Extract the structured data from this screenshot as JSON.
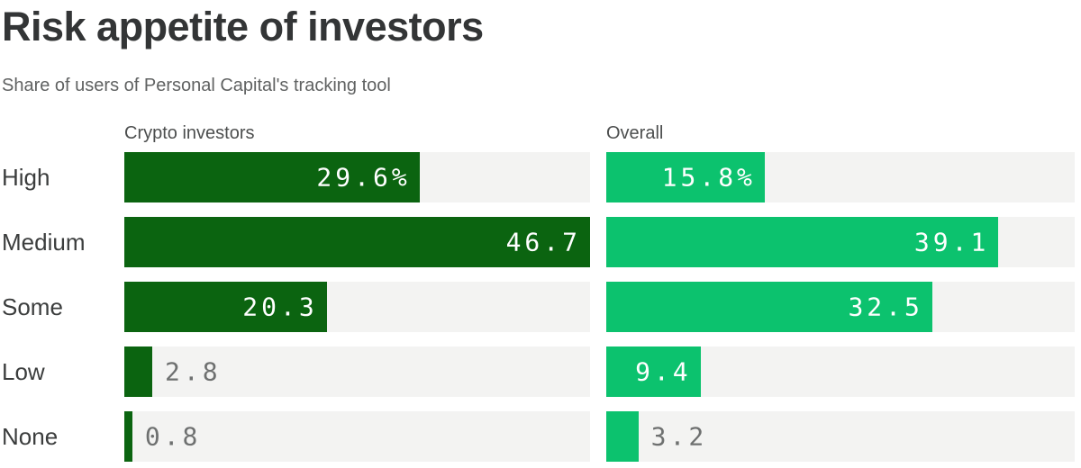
{
  "title": "Risk appetite of investors",
  "subtitle": "Share of users of Personal Capital's tracking tool",
  "chart_data": {
    "type": "bar",
    "orientation": "horizontal",
    "categories": [
      "High",
      "Medium",
      "Some",
      "Low",
      "None"
    ],
    "series": [
      {
        "name": "Crypto investors",
        "values": [
          29.6,
          46.7,
          20.3,
          2.8,
          0.8
        ],
        "labels": [
          "29.6%",
          "46.7",
          "20.3",
          "2.8",
          "0.8"
        ],
        "color": "#0b6410"
      },
      {
        "name": "Overall",
        "values": [
          15.8,
          39.1,
          32.5,
          9.4,
          3.2
        ],
        "labels": [
          "15.8%",
          "39.1",
          "32.5",
          "9.4",
          "3.2"
        ],
        "color": "#0cc26e"
      }
    ],
    "xmax": 46.7,
    "xmin": 0,
    "track_color": "#f3f3f2",
    "value_label_inside_color": "#ffffff",
    "value_label_outside_color": "#6e7070",
    "legend_position": "column-headers",
    "grid": false,
    "inside_label_threshold_fraction": 0.15
  }
}
